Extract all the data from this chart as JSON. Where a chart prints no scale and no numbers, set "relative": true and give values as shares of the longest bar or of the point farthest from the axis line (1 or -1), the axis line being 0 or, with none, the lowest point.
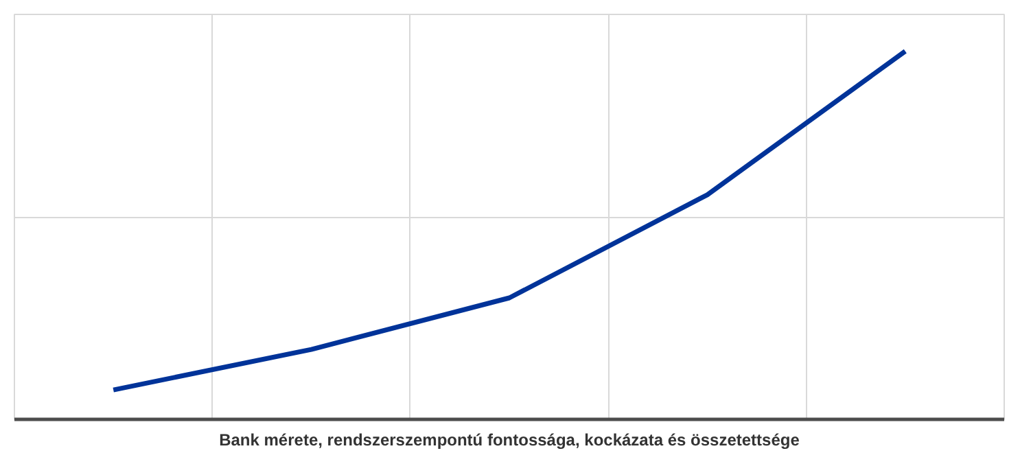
{
  "chart_data": {
    "type": "line",
    "relative": true,
    "xlabel": "Bank mérete, rendszerszempontú fontossága, kockázata és összetettsége",
    "categories": [
      null,
      null,
      null,
      null,
      null
    ],
    "grid": true,
    "marker": "none",
    "line_style": "solid",
    "series": [
      {
        "color": "#003399",
        "values": [
          0.08,
          0.19,
          0.33,
          0.61,
          1.0
        ]
      }
    ]
  }
}
